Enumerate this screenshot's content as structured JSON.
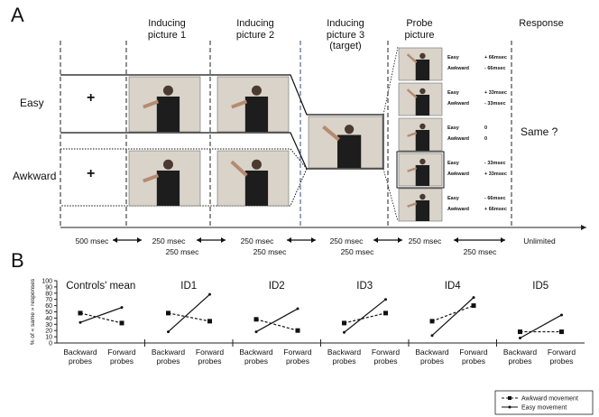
{
  "panel_a": {
    "label": "A",
    "columns": [
      "Inducing picture 1",
      "Inducing picture 2",
      "Inducing picture 3 (target)",
      "Probe picture",
      "Response"
    ],
    "rows": [
      "Easy",
      "Awkward"
    ],
    "fixation": "+",
    "response": "Same ?",
    "probes": [
      [
        "Easy",
        "+ 66msec",
        "Awkward",
        "- 66msec"
      ],
      [
        "Easy",
        "+ 33msec",
        "Awkward",
        "- 33msec"
      ],
      [
        "Easy",
        "0",
        "Awkward",
        "0"
      ],
      [
        "Easy",
        "- 33msec",
        "Awkward",
        "+ 33msec"
      ],
      [
        "Easy",
        "- 66msec",
        "Awkward",
        "+ 66msec"
      ]
    ],
    "timing_top": [
      "500 msec",
      "250 msec",
      "250 msec",
      "250 msec",
      "250 msec",
      "Unlimited"
    ],
    "timing_bottom": [
      "250 msec",
      "250 msec",
      "250 msec",
      "250 msec"
    ]
  },
  "panel_b_label": "B",
  "chart_data": [
    {
      "type": "line",
      "title": "Controls' mean",
      "y_label": "% of « same » responses",
      "categories": [
        "Backward probes",
        "Forward probes"
      ],
      "ylim": [
        0,
        100
      ],
      "yticks": [
        0,
        10,
        20,
        30,
        40,
        50,
        60,
        70,
        80,
        90,
        100
      ],
      "series": [
        {
          "name": "Awkward movement",
          "color": "#111111",
          "dashed": true,
          "values": [
            48,
            32
          ]
        },
        {
          "name": "Easy movement",
          "color": "#111111",
          "dashed": false,
          "values": [
            33,
            57
          ]
        }
      ]
    },
    {
      "type": "line",
      "title": "ID1",
      "categories": [
        "Backward probes",
        "Forward probes"
      ],
      "ylim": [
        0,
        100
      ],
      "series": [
        {
          "color": "#111111",
          "dashed": true,
          "values": [
            48,
            35
          ]
        },
        {
          "color": "#111111",
          "dashed": false,
          "values": [
            18,
            78
          ]
        }
      ]
    },
    {
      "type": "line",
      "title": "ID2",
      "categories": [
        "Backward probes",
        "Forward probes"
      ],
      "ylim": [
        0,
        100
      ],
      "series": [
        {
          "color": "#111111",
          "dashed": true,
          "values": [
            38,
            20
          ]
        },
        {
          "color": "#111111",
          "dashed": false,
          "values": [
            18,
            55
          ]
        }
      ]
    },
    {
      "type": "line",
      "title": "ID3",
      "categories": [
        "Backward probes",
        "Forward probes"
      ],
      "ylim": [
        0,
        100
      ],
      "series": [
        {
          "color": "#111111",
          "dashed": true,
          "values": [
            32,
            48
          ]
        },
        {
          "color": "#111111",
          "dashed": false,
          "values": [
            17,
            70
          ]
        }
      ]
    },
    {
      "type": "line",
      "title": "ID4",
      "categories": [
        "Backward probes",
        "Forward probes"
      ],
      "ylim": [
        0,
        100
      ],
      "series": [
        {
          "color": "#111111",
          "dashed": true,
          "values": [
            35,
            60
          ]
        },
        {
          "color": "#111111",
          "dashed": false,
          "values": [
            12,
            73
          ]
        }
      ]
    },
    {
      "type": "line",
      "title": "ID5",
      "categories": [
        "Backward probes",
        "Forward probes"
      ],
      "ylim": [
        0,
        100
      ],
      "series": [
        {
          "color": "#111111",
          "dashed": true,
          "values": [
            18,
            18
          ]
        },
        {
          "color": "#111111",
          "dashed": false,
          "values": [
            8,
            45
          ]
        }
      ]
    }
  ]
}
